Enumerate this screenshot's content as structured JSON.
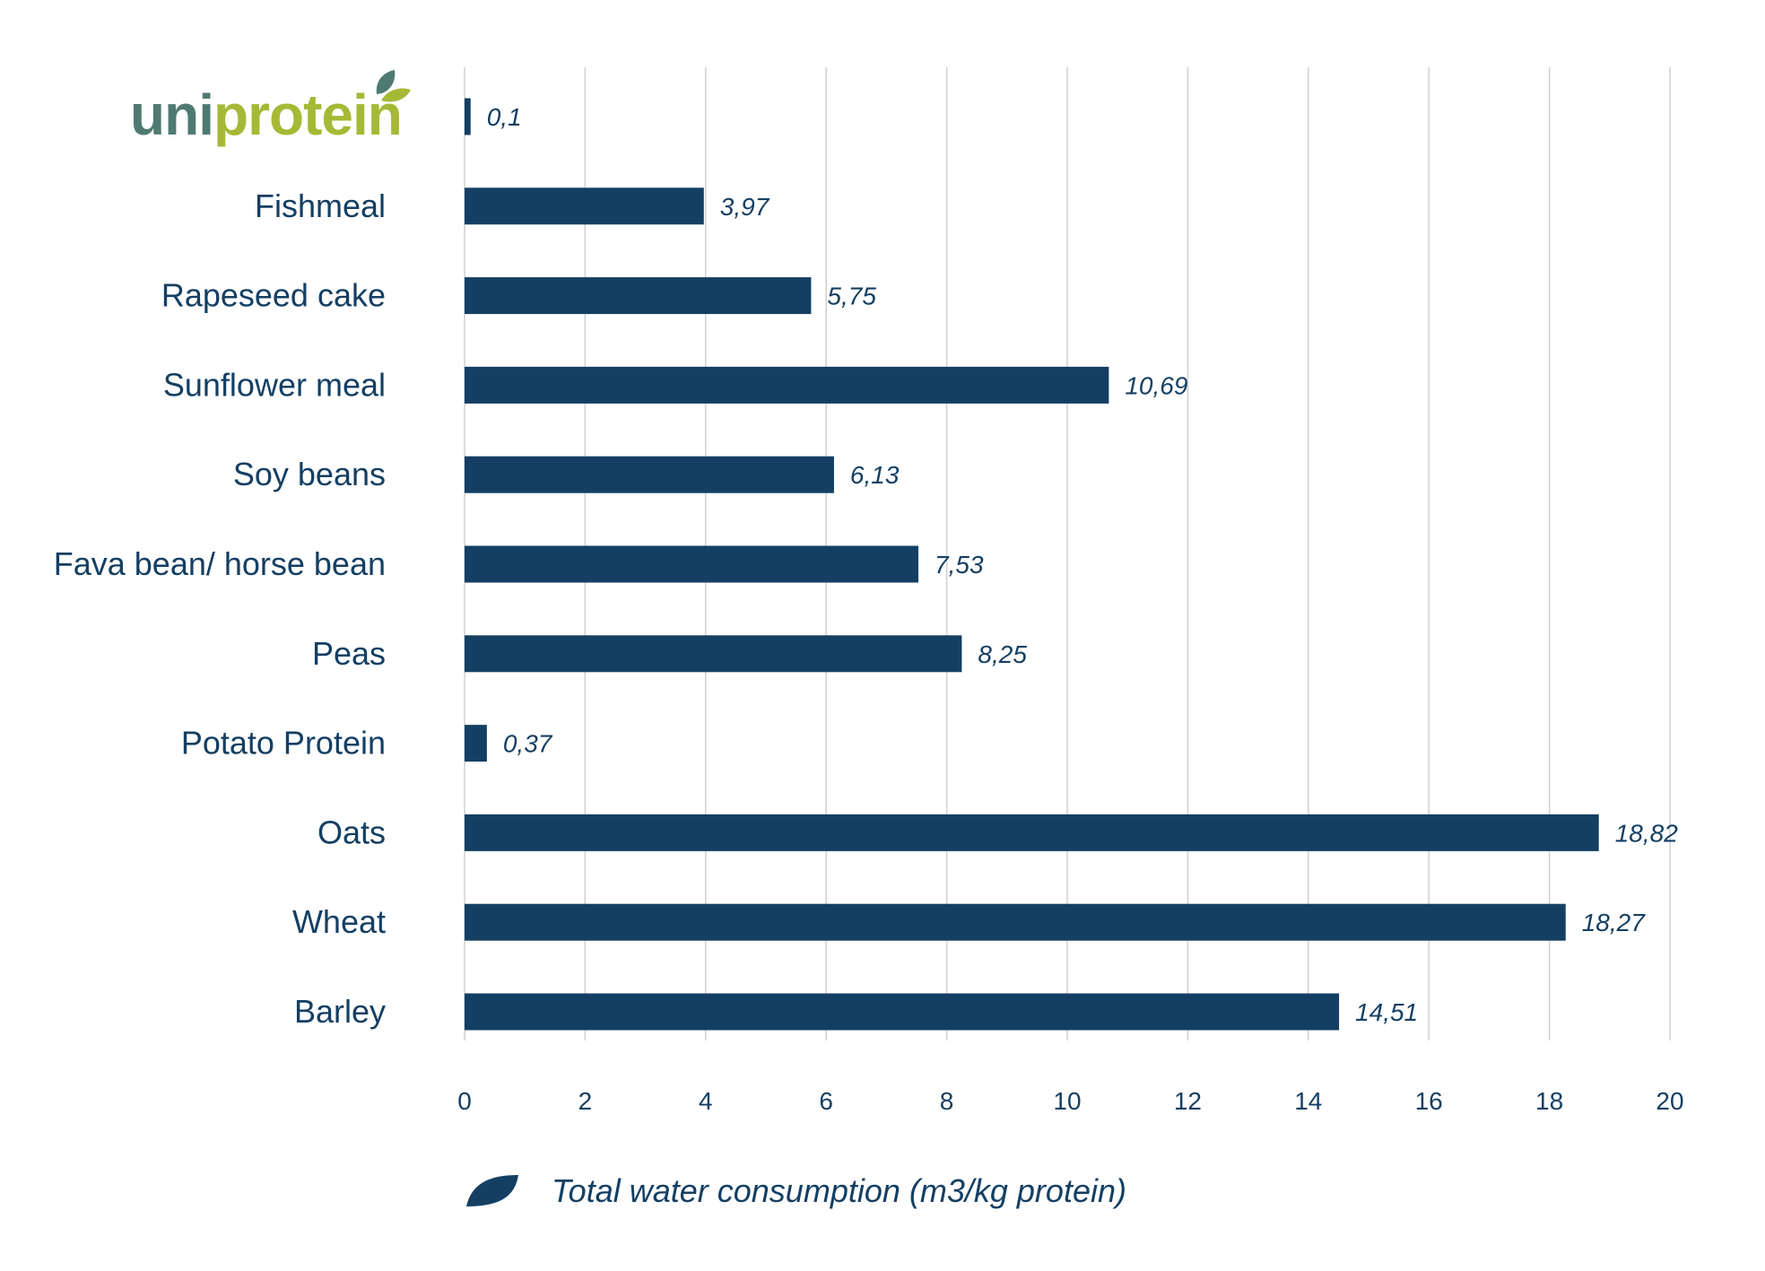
{
  "logo": {
    "text_uni": "uni",
    "text_protein": "protein",
    "color_uni": "#4e7a72",
    "color_protein": "#a6b936",
    "leaf_dark": "#4e7a72",
    "leaf_light": "#a6b936"
  },
  "colors": {
    "bar": "#143f63",
    "text": "#143f63",
    "grid": "#d0d0d0"
  },
  "chart_data": {
    "type": "bar",
    "orientation": "horizontal",
    "categories": [
      "",
      "Fishmeal",
      "Rapeseed cake",
      "Sunflower meal",
      "Soy beans",
      "Fava bean/ horse bean",
      "Peas",
      "Potato Protein",
      "Oats",
      "Wheat",
      "Barley"
    ],
    "series": [
      {
        "name": "Total water consumption (m3/kg protein)",
        "values": [
          0.1,
          3.97,
          5.75,
          10.69,
          6.13,
          7.53,
          8.25,
          0.37,
          18.82,
          18.27,
          14.51
        ],
        "value_labels": [
          "0,1",
          "3,97",
          "5,75",
          "10,69",
          "6,13",
          "7,53",
          "8,25",
          "0,37",
          "18,82",
          "18,27",
          "14,51"
        ]
      }
    ],
    "xlim": [
      0,
      20
    ],
    "xticks": [
      "0",
      "2",
      "4",
      "6",
      "8",
      "10",
      "12",
      "14",
      "16",
      "18",
      "20"
    ],
    "grid": true,
    "legend_position": "bottom"
  }
}
